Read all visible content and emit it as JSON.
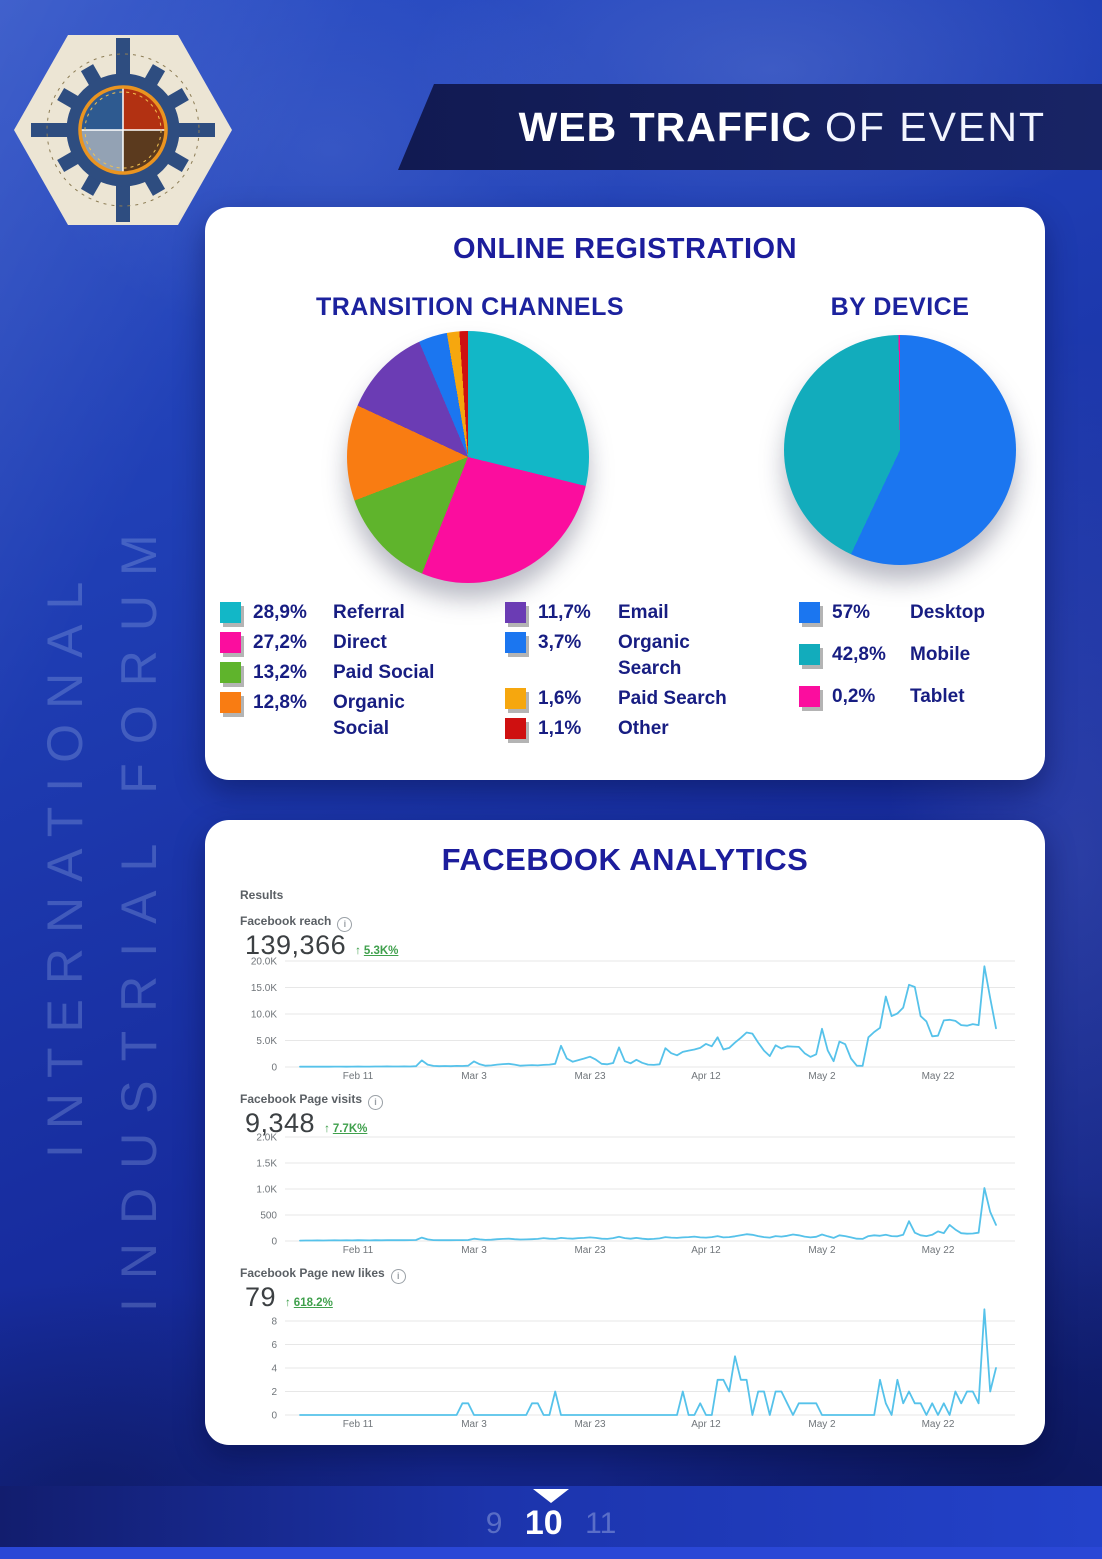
{
  "header": {
    "title_bold": "WEB TRAFFIC",
    "title_light": "OF EVENT"
  },
  "sidebar": {
    "line1": "INTERNATIONAL",
    "line2": "INDUSTRIAL FORUM"
  },
  "registration": {
    "title": "ONLINE REGISTRATION"
  },
  "facebook": {
    "title": "FACEBOOK ANALYTICS",
    "results_label": "Results"
  },
  "footer": {
    "prev": "9",
    "current": "10",
    "next": "11"
  },
  "chart_data": [
    {
      "id": "transition-channels",
      "type": "pie",
      "title": "TRANSITION CHANNELS",
      "labels": [
        "Referral",
        "Direct",
        "Paid Social",
        "Organic Social",
        "Email",
        "Organic Search",
        "Paid Search",
        "Other"
      ],
      "pct_labels": [
        "28,9%",
        "27,2%",
        "13,2%",
        "12,8%",
        "11,7%",
        "3,7%",
        "1,6%",
        "1,1%"
      ],
      "values": [
        28.9,
        27.2,
        13.2,
        12.8,
        11.7,
        3.7,
        1.6,
        1.1
      ],
      "colors": [
        "#12b7c7",
        "#fb0d9e",
        "#5fb42c",
        "#f97c12",
        "#6b3cb4",
        "#1b76f0",
        "#f6a70e",
        "#cf1010"
      ]
    },
    {
      "id": "by-device",
      "type": "pie",
      "title": "BY DEVICE",
      "labels": [
        "Desktop",
        "Mobile",
        "Tablet"
      ],
      "pct_labels": [
        "57%",
        "42,8%",
        "0,2%"
      ],
      "values": [
        57,
        42.8,
        0.2
      ],
      "colors": [
        "#1b76f0",
        "#12acbc",
        "#fb0d9e"
      ]
    },
    {
      "id": "facebook-reach",
      "type": "line",
      "label": "Facebook reach",
      "total": "139,366",
      "arrow": "↑",
      "delta": "5.3K%",
      "line_color": "#56c2ea",
      "ylim": [
        0,
        20
      ],
      "grid": true,
      "unit": "K",
      "y_ticks": [
        {
          "label": "20.0K",
          "v": 20
        },
        {
          "label": "15.0K",
          "v": 15
        },
        {
          "label": "10.0K",
          "v": 10
        },
        {
          "label": "5.0K",
          "v": 5
        },
        {
          "label": "0",
          "v": 0
        }
      ],
      "x_ticks": [
        {
          "label": "Feb 11",
          "d": 10
        },
        {
          "label": "Mar 3",
          "d": 30
        },
        {
          "label": "Mar 23",
          "d": 50
        },
        {
          "label": "Apr 12",
          "d": 70
        },
        {
          "label": "May 2",
          "d": 90
        },
        {
          "label": "May 22",
          "d": 110
        }
      ],
      "values": [
        0.05,
        0.06,
        0.05,
        0.07,
        0.06,
        0.05,
        0.08,
        0.07,
        0.06,
        0.08,
        0.1,
        0.08,
        0.07,
        0.09,
        0.1,
        0.12,
        0.1,
        0.09,
        0.11,
        0.1,
        0.15,
        1.25,
        0.45,
        0.2,
        0.15,
        0.18,
        0.15,
        0.2,
        0.18,
        0.25,
        1.05,
        0.5,
        0.25,
        0.3,
        0.45,
        0.55,
        0.6,
        0.45,
        0.25,
        0.3,
        0.35,
        0.3,
        0.4,
        0.45,
        0.6,
        4.0,
        1.6,
        1.0,
        1.3,
        1.6,
        1.95,
        1.4,
        0.6,
        0.5,
        0.75,
        3.7,
        1.1,
        0.7,
        1.35,
        0.8,
        0.45,
        0.4,
        0.5,
        3.55,
        2.6,
        2.2,
        2.85,
        3.1,
        3.3,
        3.6,
        4.35,
        3.9,
        5.6,
        3.3,
        3.6,
        4.6,
        5.5,
        6.5,
        6.3,
        4.6,
        3.1,
        2.05,
        4.1,
        3.5,
        3.9,
        3.85,
        3.8,
        2.6,
        1.9,
        2.4,
        7.2,
        3.1,
        1.1,
        4.8,
        4.3,
        1.6,
        0.25,
        0.2,
        5.6,
        6.6,
        7.4,
        13.3,
        9.6,
        10.1,
        11.2,
        15.5,
        15.1,
        9.6,
        8.6,
        5.8,
        5.9,
        8.8,
        8.9,
        8.7,
        7.9,
        7.8,
        8.1,
        7.9,
        19.0,
        13.0,
        7.3
      ]
    },
    {
      "id": "facebook-page-visits",
      "type": "line",
      "label": "Facebook Page visits",
      "total": "9,348",
      "arrow": "↑",
      "delta": "7.7K%",
      "line_color": "#56c2ea",
      "ylim": [
        0,
        2000
      ],
      "grid": true,
      "unit": "",
      "y_ticks": [
        {
          "label": "2.0K",
          "v": 2000
        },
        {
          "label": "1.5K",
          "v": 1500
        },
        {
          "label": "1.0K",
          "v": 1000
        },
        {
          "label": "500",
          "v": 500
        },
        {
          "label": "0",
          "v": 0
        }
      ],
      "x_ticks": [
        {
          "label": "Feb 11",
          "d": 10
        },
        {
          "label": "Mar 3",
          "d": 30
        },
        {
          "label": "Mar 23",
          "d": 50
        },
        {
          "label": "Apr 12",
          "d": 70
        },
        {
          "label": "May 2",
          "d": 90
        },
        {
          "label": "May 22",
          "d": 110
        }
      ],
      "values": [
        8,
        10,
        9,
        12,
        10,
        11,
        13,
        12,
        14,
        12,
        15,
        13,
        12,
        16,
        14,
        15,
        17,
        15,
        16,
        18,
        20,
        65,
        30,
        18,
        15,
        17,
        16,
        18,
        17,
        20,
        45,
        30,
        22,
        25,
        35,
        40,
        45,
        35,
        28,
        30,
        35,
        40,
        55,
        45,
        40,
        60,
        50,
        45,
        55,
        60,
        70,
        60,
        45,
        40,
        55,
        80,
        55,
        45,
        60,
        45,
        35,
        40,
        50,
        75,
        65,
        60,
        70,
        75,
        85,
        70,
        65,
        75,
        95,
        70,
        75,
        90,
        110,
        130,
        120,
        95,
        75,
        65,
        95,
        85,
        100,
        125,
        110,
        85,
        70,
        80,
        125,
        90,
        60,
        110,
        95,
        70,
        45,
        40,
        95,
        110,
        100,
        120,
        95,
        90,
        120,
        380,
        160,
        110,
        95,
        120,
        185,
        150,
        310,
        220,
        150,
        140,
        145,
        160,
        1020,
        560,
        310
      ]
    },
    {
      "id": "facebook-page-new-likes",
      "type": "line",
      "label": "Facebook Page new likes",
      "total": "79",
      "arrow": "↑",
      "delta": "618.2%",
      "line_color": "#56c2ea",
      "ylim": [
        0,
        9.5
      ],
      "grid": true,
      "unit": "",
      "y_ticks": [
        {
          "label": "8",
          "v": 8
        },
        {
          "label": "6",
          "v": 6
        },
        {
          "label": "4",
          "v": 4
        },
        {
          "label": "2",
          "v": 2
        },
        {
          "label": "0",
          "v": 0
        }
      ],
      "x_ticks": [
        {
          "label": "Feb 11",
          "d": 10
        },
        {
          "label": "Mar 3",
          "d": 30
        },
        {
          "label": "Mar 23",
          "d": 50
        },
        {
          "label": "Apr 12",
          "d": 70
        },
        {
          "label": "May 2",
          "d": 90
        },
        {
          "label": "May 22",
          "d": 110
        }
      ],
      "values": [
        0,
        0,
        0,
        0,
        0,
        0,
        0,
        0,
        0,
        0,
        0,
        0,
        0,
        0,
        0,
        0,
        0,
        0,
        0,
        0,
        0,
        0,
        0,
        0,
        0,
        0,
        0,
        0,
        1,
        1,
        0,
        0,
        0,
        0,
        0,
        0,
        0,
        0,
        0,
        0,
        1,
        1,
        0,
        0,
        2,
        0,
        0,
        0,
        0,
        0,
        0,
        0,
        0,
        0,
        0,
        0,
        0,
        0,
        0,
        0,
        0,
        0,
        0,
        0,
        0,
        0,
        2,
        0,
        0,
        1,
        0,
        0,
        3,
        3,
        2,
        5,
        3,
        3,
        0,
        2,
        2,
        0,
        2,
        2,
        1,
        0,
        1,
        1,
        1,
        1,
        0,
        0,
        0,
        0,
        0,
        0,
        0,
        0,
        0,
        0,
        3,
        1,
        0,
        3,
        1,
        2,
        1,
        1,
        0,
        1,
        0,
        1,
        0,
        2,
        1,
        2,
        2,
        1,
        9,
        2,
        4
      ]
    }
  ]
}
